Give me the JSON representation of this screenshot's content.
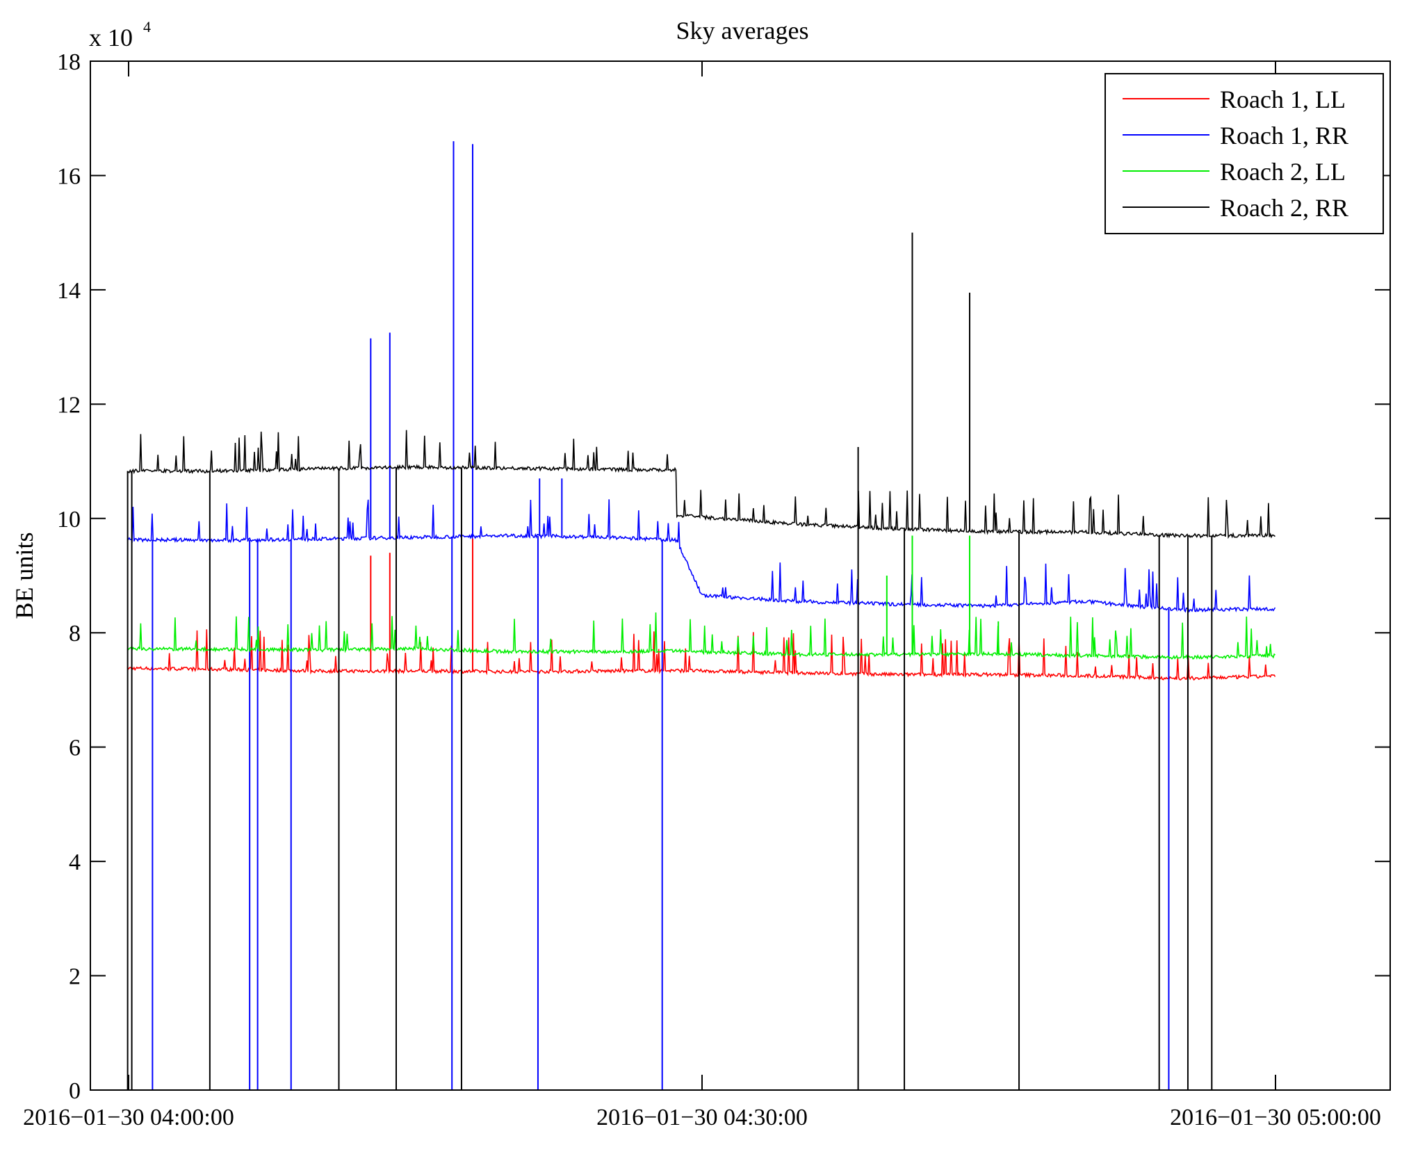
{
  "chart_data": {
    "type": "line",
    "title": "Sky averages",
    "xlabel": "",
    "ylabel": "BE units",
    "y_multiplier_base": "x 10",
    "y_multiplier_exponent": "4",
    "xlim": [
      "2016-01-30 03:58:00",
      "2016-01-30 05:06:00"
    ],
    "ylim": [
      0,
      18
    ],
    "x_ticks": [
      "2016-01-30 04:00:00",
      "2016-01-30 04:30:00",
      "2016-01-30 05:00:00"
    ],
    "y_ticks": [
      0,
      2,
      4,
      6,
      8,
      10,
      12,
      14,
      16,
      18
    ],
    "y_tick_labels": [
      "0",
      "2",
      "4",
      "6",
      "8",
      "10",
      "12",
      "14",
      "16",
      "18"
    ],
    "legend_position": "top-right",
    "grid": false,
    "x_start": "2016-01-30 03:59:56",
    "x_end": "2016-01-30 05:00:00",
    "series": [
      {
        "name": "Roach 1, LL",
        "color": "#ff0000",
        "points": [
          [
            "2016-01-30 04:00:00",
            7.38
          ],
          [
            "2016-01-30 04:05:00",
            7.36
          ],
          [
            "2016-01-30 04:10:00",
            7.33
          ],
          [
            "2016-01-30 04:15:00",
            7.33
          ],
          [
            "2016-01-30 04:20:00",
            7.32
          ],
          [
            "2016-01-30 04:25:00",
            7.33
          ],
          [
            "2016-01-30 04:28:40",
            7.34
          ],
          [
            "2016-01-30 04:35:00",
            7.3
          ],
          [
            "2016-01-30 04:40:00",
            7.27
          ],
          [
            "2016-01-30 04:45:00",
            7.27
          ],
          [
            "2016-01-30 04:50:00",
            7.25
          ],
          [
            "2016-01-30 04:55:00",
            7.2
          ],
          [
            "2016-01-30 05:00:00",
            7.24
          ]
        ],
        "spikes": [
          [
            "2016-01-30 04:12:40",
            9.35
          ],
          [
            "2016-01-30 04:13:40",
            9.4
          ],
          [
            "2016-01-30 04:18:00",
            9.65
          ]
        ],
        "dips": []
      },
      {
        "name": "Roach 1, RR",
        "color": "#0000ff",
        "points": [
          [
            "2016-01-30 04:00:00",
            9.63
          ],
          [
            "2016-01-30 04:05:00",
            9.62
          ],
          [
            "2016-01-30 04:10:00",
            9.64
          ],
          [
            "2016-01-30 04:15:00",
            9.67
          ],
          [
            "2016-01-30 04:20:00",
            9.7
          ],
          [
            "2016-01-30 04:25:00",
            9.67
          ],
          [
            "2016-01-30 04:28:40",
            9.62
          ],
          [
            "2016-01-30 04:30:00",
            8.65
          ],
          [
            "2016-01-30 04:35:00",
            8.55
          ],
          [
            "2016-01-30 04:40:00",
            8.5
          ],
          [
            "2016-01-30 04:45:00",
            8.47
          ],
          [
            "2016-01-30 04:50:00",
            8.55
          ],
          [
            "2016-01-30 04:55:00",
            8.4
          ],
          [
            "2016-01-30 05:00:00",
            8.42
          ]
        ],
        "spikes": [
          [
            "2016-01-30 04:12:40",
            13.15
          ],
          [
            "2016-01-30 04:13:40",
            13.25
          ],
          [
            "2016-01-30 04:17:00",
            16.6
          ],
          [
            "2016-01-30 04:18:00",
            16.55
          ],
          [
            "2016-01-30 04:21:30",
            10.7
          ],
          [
            "2016-01-30 04:22:40",
            10.7
          ]
        ],
        "dips": [
          "2016-01-30 04:01:15",
          "2016-01-30 04:06:20",
          "2016-01-30 04:06:45",
          "2016-01-30 04:08:30",
          "2016-01-30 04:16:55",
          "2016-01-30 04:21:25",
          "2016-01-30 04:27:55",
          "2016-01-30 04:54:25"
        ]
      },
      {
        "name": "Roach 2, LL",
        "color": "#00ee00",
        "points": [
          [
            "2016-01-30 04:00:00",
            7.72
          ],
          [
            "2016-01-30 04:05:00",
            7.71
          ],
          [
            "2016-01-30 04:10:00",
            7.7
          ],
          [
            "2016-01-30 04:15:00",
            7.72
          ],
          [
            "2016-01-30 04:20:00",
            7.67
          ],
          [
            "2016-01-30 04:25:00",
            7.67
          ],
          [
            "2016-01-30 04:28:40",
            7.68
          ],
          [
            "2016-01-30 04:35:00",
            7.62
          ],
          [
            "2016-01-30 04:40:00",
            7.62
          ],
          [
            "2016-01-30 04:45:00",
            7.63
          ],
          [
            "2016-01-30 04:50:00",
            7.6
          ],
          [
            "2016-01-30 04:55:00",
            7.57
          ],
          [
            "2016-01-30 05:00:00",
            7.6
          ]
        ],
        "spikes": [
          [
            "2016-01-30 04:39:40",
            9.0
          ],
          [
            "2016-01-30 04:41:00",
            9.7
          ],
          [
            "2016-01-30 04:44:00",
            9.7
          ],
          [
            "2016-01-30 04:45:30",
            8.2
          ]
        ],
        "dips": []
      },
      {
        "name": "Roach 2, RR",
        "color": "#000000",
        "points": [
          [
            "2016-01-30 04:00:00",
            10.83
          ],
          [
            "2016-01-30 04:05:00",
            10.83
          ],
          [
            "2016-01-30 04:10:00",
            10.87
          ],
          [
            "2016-01-30 04:15:00",
            10.9
          ],
          [
            "2016-01-30 04:20:00",
            10.88
          ],
          [
            "2016-01-30 04:25:00",
            10.86
          ],
          [
            "2016-01-30 04:28:40",
            10.85
          ],
          [
            "2016-01-30 04:29:00",
            10.05
          ],
          [
            "2016-01-30 04:35:00",
            9.9
          ],
          [
            "2016-01-30 04:40:00",
            9.82
          ],
          [
            "2016-01-30 04:45:00",
            9.77
          ],
          [
            "2016-01-30 04:50:00",
            9.76
          ],
          [
            "2016-01-30 04:55:00",
            9.7
          ],
          [
            "2016-01-30 05:00:00",
            9.7
          ]
        ],
        "spikes": [
          [
            "2016-01-30 04:38:10",
            11.25
          ],
          [
            "2016-01-30 04:41:00",
            15.0
          ],
          [
            "2016-01-30 04:44:00",
            13.95
          ]
        ],
        "dips": [
          "2016-01-30 03:59:57",
          "2016-01-30 04:00:10",
          "2016-01-30 04:04:15",
          "2016-01-30 04:11:00",
          "2016-01-30 04:14:00",
          "2016-01-30 04:17:25",
          "2016-01-30 04:38:10",
          "2016-01-30 04:40:35",
          "2016-01-30 04:46:35",
          "2016-01-30 04:53:55",
          "2016-01-30 04:55:25",
          "2016-01-30 04:56:40"
        ]
      }
    ]
  }
}
